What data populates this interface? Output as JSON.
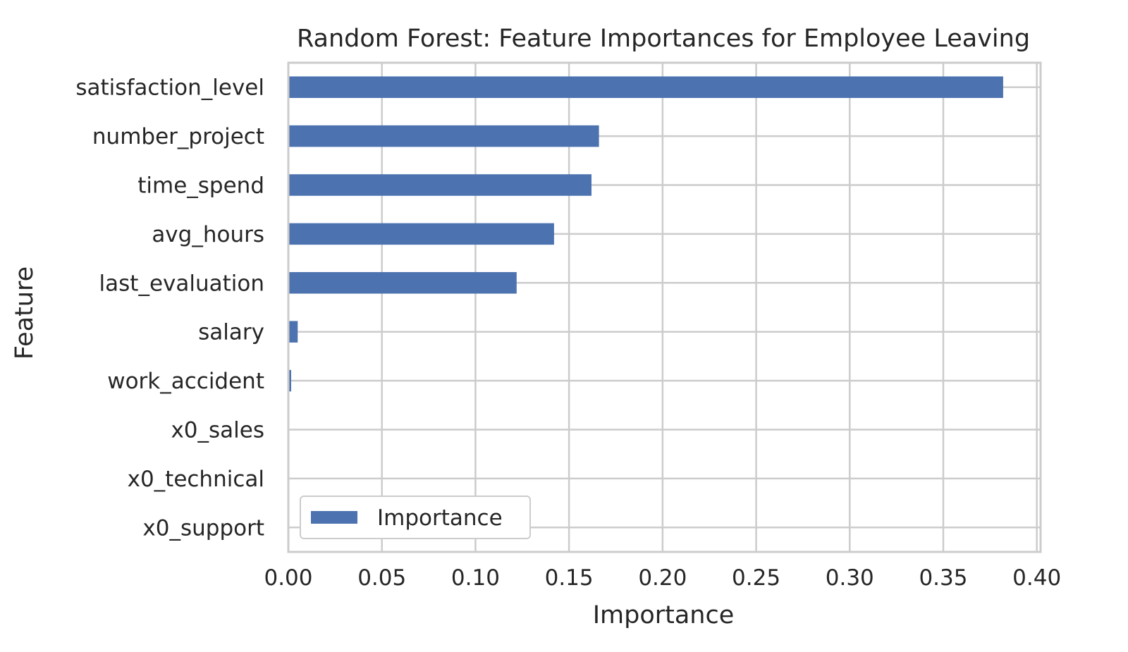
{
  "chart_data": {
    "type": "bar",
    "orientation": "horizontal",
    "title": "Random Forest: Feature Importances for Employee Leaving",
    "xlabel": "Importance",
    "ylabel": "Feature",
    "categories": [
      "satisfaction_level",
      "number_project",
      "time_spend",
      "avg_hours",
      "last_evaluation",
      "salary",
      "work_accident",
      "x0_sales",
      "x0_technical",
      "x0_support"
    ],
    "series": [
      {
        "name": "Importance",
        "color": "#4c72b0",
        "values": [
          0.382,
          0.166,
          0.162,
          0.142,
          0.122,
          0.005,
          0.0015,
          0.0,
          0.0,
          0.0
        ]
      }
    ],
    "xlim": [
      0,
      0.402
    ],
    "xticks": [
      0.0,
      0.05,
      0.1,
      0.15,
      0.2,
      0.25,
      0.3,
      0.35,
      0.4
    ],
    "xtick_labels": [
      "0.00",
      "0.05",
      "0.10",
      "0.15",
      "0.20",
      "0.25",
      "0.30",
      "0.35",
      "0.40"
    ],
    "grid": true,
    "legend_position": "lower-left"
  }
}
